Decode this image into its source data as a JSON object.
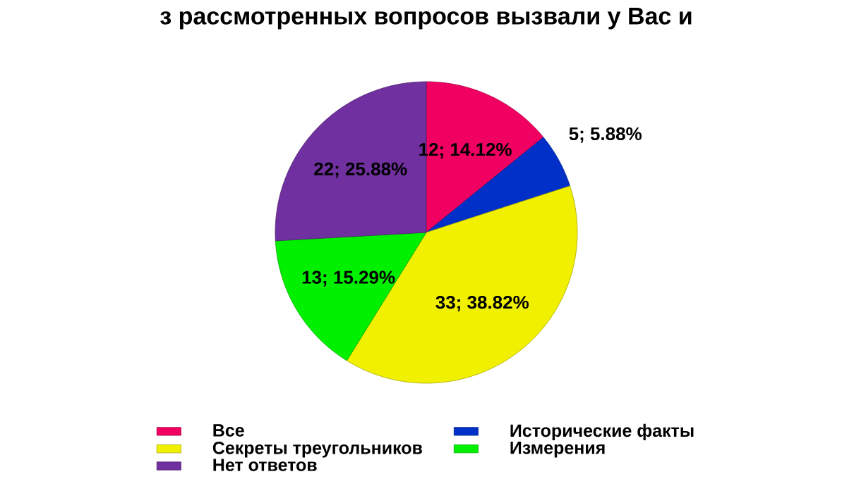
{
  "chart_data": {
    "type": "pie",
    "title": "з рассмотренных вопросов вызвали у Вас и",
    "categories": [
      "Все",
      "Исторические факты",
      "Секреты треугольников",
      "Измерения",
      "Нет ответов"
    ],
    "values": [
      12,
      5,
      33,
      13,
      22
    ],
    "colors": [
      "#f00060",
      "#0030c8",
      "#f0f000",
      "#00f000",
      "#7030a0"
    ],
    "value_labels": [
      "12; 14.12%",
      "5; 5.88%",
      "33; 38.82%",
      "13; 15.29%",
      "22; 25.88%"
    ],
    "legend": "bottom"
  }
}
